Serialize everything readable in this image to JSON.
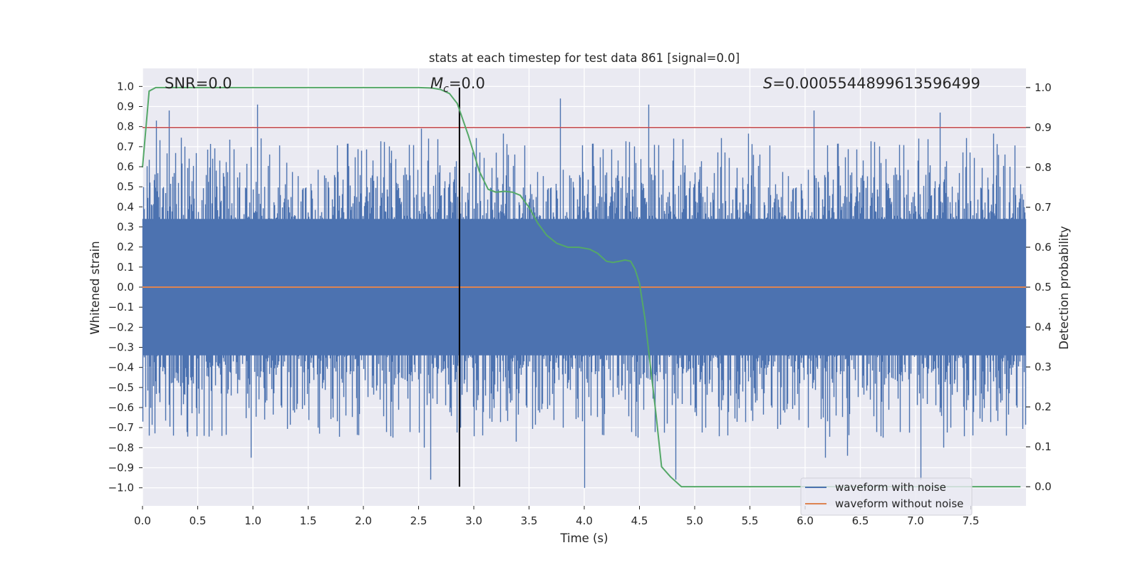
{
  "chart_data": {
    "type": "line",
    "title": "stats at each timestep for test data 861 [signal=0.0]",
    "xlabel": "Time (s)",
    "ylabel": "Whitened strain",
    "y2label": "Detection probability",
    "xlim": [
      0.0,
      8.0
    ],
    "ylim": [
      -1.09,
      1.09
    ],
    "y2lim": [
      -0.048,
      1.048
    ],
    "x_ticks": [
      "0.0",
      "0.5",
      "1.0",
      "1.5",
      "2.0",
      "2.5",
      "3.0",
      "3.5",
      "4.0",
      "4.5",
      "5.0",
      "5.5",
      "6.0",
      "6.5",
      "7.0",
      "7.5"
    ],
    "y_ticks": [
      "1.0",
      "0.9",
      "0.8",
      "0.7",
      "0.6",
      "0.5",
      "0.4",
      "0.3",
      "0.2",
      "0.1",
      "0.0",
      "−0.1",
      "−0.2",
      "−0.3",
      "−0.4",
      "−0.5",
      "−0.6",
      "−0.7",
      "−0.8",
      "−0.9",
      "−1.0"
    ],
    "y2_ticks": [
      "1.0",
      "0.9",
      "0.8",
      "0.7",
      "0.6",
      "0.5",
      "0.4",
      "0.3",
      "0.2",
      "0.1",
      "0.0"
    ],
    "annotations": {
      "snr": "SNR=0.0",
      "mc_symbol": "M",
      "mc_sub": "c",
      "mc_value": "=0.0",
      "s_symbol": "S",
      "s_value": "=0.0005544899613596499"
    },
    "vertical_marker_x": 2.87,
    "threshold_y2": 0.9,
    "grid": true,
    "legend_position": "lower-right",
    "series": [
      {
        "name": "waveform with noise",
        "color": "#4c72b0",
        "axis": "left",
        "description": "white noise, sampled 2048 Hz, roughly within [-1, 0.94]",
        "peaks": [
          {
            "x": 0.04,
            "y": 0.53
          },
          {
            "x": 0.12,
            "y": 0.83
          },
          {
            "x": 0.24,
            "y": 0.88
          },
          {
            "x": 0.38,
            "y": 0.7
          },
          {
            "x": 0.63,
            "y": 0.64
          },
          {
            "x": 1.04,
            "y": 0.91
          },
          {
            "x": 1.3,
            "y": 0.62
          },
          {
            "x": 1.98,
            "y": 0.68
          },
          {
            "x": 2.25,
            "y": 0.68
          },
          {
            "x": 2.52,
            "y": 0.79
          },
          {
            "x": 3.2,
            "y": 0.67
          },
          {
            "x": 3.78,
            "y": 0.94
          },
          {
            "x": 4.58,
            "y": 0.91
          },
          {
            "x": 6.08,
            "y": 0.88
          },
          {
            "x": 7.22,
            "y": 0.87
          },
          {
            "x": 7.85,
            "y": 0.6
          }
        ],
        "troughs": [
          {
            "x": 0.06,
            "y": -0.74
          },
          {
            "x": 0.28,
            "y": -0.74
          },
          {
            "x": 0.98,
            "y": -0.85
          },
          {
            "x": 1.1,
            "y": -0.66
          },
          {
            "x": 1.6,
            "y": -0.73
          },
          {
            "x": 2.55,
            "y": -0.8
          },
          {
            "x": 3.38,
            "y": -0.77
          },
          {
            "x": 4.0,
            "y": -1.0
          },
          {
            "x": 4.75,
            "y": -0.68
          },
          {
            "x": 6.18,
            "y": -0.85
          },
          {
            "x": 6.38,
            "y": -0.84
          },
          {
            "x": 7.25,
            "y": -0.8
          },
          {
            "x": 7.82,
            "y": -0.74
          }
        ]
      },
      {
        "name": "waveform without noise",
        "color": "#dd8452",
        "axis": "left",
        "x": [
          0.0,
          8.0
        ],
        "y": [
          0.0,
          0.0
        ]
      },
      {
        "name": "detection probability",
        "color": "#55a868",
        "axis": "right",
        "x": [
          0.0,
          0.06,
          0.12,
          0.2,
          1.0,
          2.0,
          2.5,
          2.62,
          2.7,
          2.78,
          2.85,
          2.95,
          3.05,
          3.13,
          3.2,
          3.28,
          3.35,
          3.42,
          3.5,
          3.58,
          3.66,
          3.75,
          3.85,
          3.95,
          4.05,
          4.12,
          4.2,
          4.26,
          4.32,
          4.37,
          4.42,
          4.46,
          4.5,
          4.55,
          4.6,
          4.65,
          4.7,
          4.78,
          4.88,
          5.0,
          6.0,
          7.0,
          7.95
        ],
        "y": [
          0.8,
          0.991,
          1.0,
          1.0,
          1.0,
          1.0,
          1.0,
          0.999,
          0.995,
          0.985,
          0.96,
          0.88,
          0.79,
          0.745,
          0.738,
          0.74,
          0.738,
          0.73,
          0.7,
          0.66,
          0.63,
          0.61,
          0.6,
          0.6,
          0.595,
          0.585,
          0.565,
          0.562,
          0.565,
          0.568,
          0.565,
          0.545,
          0.51,
          0.42,
          0.3,
          0.18,
          0.05,
          0.025,
          0.0,
          0.0,
          0.0,
          0.0,
          0.0
        ]
      },
      {
        "name": "threshold",
        "color": "#c44e52",
        "axis": "right",
        "x": [
          0.0,
          8.0
        ],
        "y": [
          0.9,
          0.9
        ]
      }
    ],
    "legend_entries": [
      {
        "label": "waveform with noise",
        "color": "#4c72b0"
      },
      {
        "label": "waveform without noise",
        "color": "#dd8452"
      }
    ]
  }
}
